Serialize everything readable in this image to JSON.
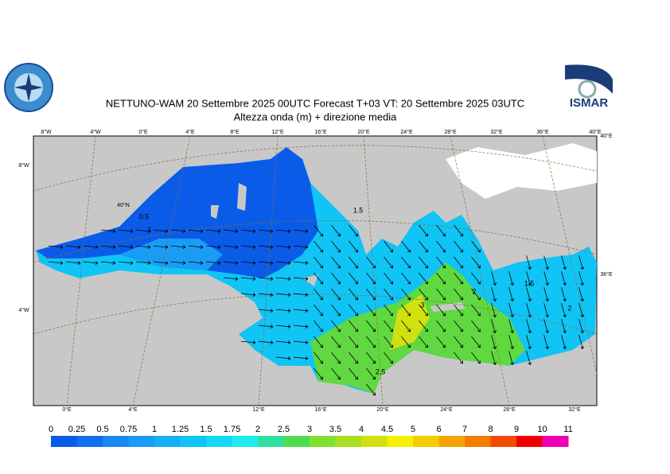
{
  "header": {
    "title": "NETTUNO-WAM  20 Settembre 2025 00UTC Forecast T+03 VT: 20 Settembre 2025 03UTC",
    "subtitle": "Altezza onda (m) + direzione media",
    "logo_right": "ISMAR"
  },
  "map": {
    "top_labels": [
      "8°W",
      "4°W",
      "0°E",
      "4°E",
      "8°E",
      "12°E",
      "16°E",
      "20°E",
      "24°E",
      "28°E",
      "32°E",
      "36°E",
      "40°E"
    ],
    "left_labels": [
      "8°W",
      "40°N",
      "4°W"
    ],
    "right_labels": [
      "40°E",
      "36°E"
    ],
    "bottom_labels": [
      "0°E",
      "4°E",
      "12°E",
      "16°E",
      "20°E",
      "24°E",
      "28°E",
      "32°E"
    ],
    "contour_labels": [
      "0.5",
      "1",
      "1.5",
      "3",
      "2",
      "1.5",
      "2",
      "2.5"
    ]
  },
  "colorbar": {
    "levels": [
      "0",
      "0.25",
      "0.5",
      "0.75",
      "1",
      "1.25",
      "1.5",
      "1.75",
      "2",
      "2.5",
      "3",
      "3.5",
      "4",
      "4.5",
      "5",
      "6",
      "7",
      "8",
      "9",
      "10",
      "11"
    ],
    "colors": [
      "#0a5ce8",
      "#1070ee",
      "#1888f2",
      "#1a9cf4",
      "#14b0f5",
      "#10c4f5",
      "#10d8f5",
      "#20ecee",
      "#30e0a0",
      "#50dc50",
      "#80e030",
      "#a8e020",
      "#d0e010",
      "#f4f000",
      "#f4cc00",
      "#f4a400",
      "#f47c00",
      "#f44c00",
      "#f00000",
      "#f000b4"
    ]
  }
}
